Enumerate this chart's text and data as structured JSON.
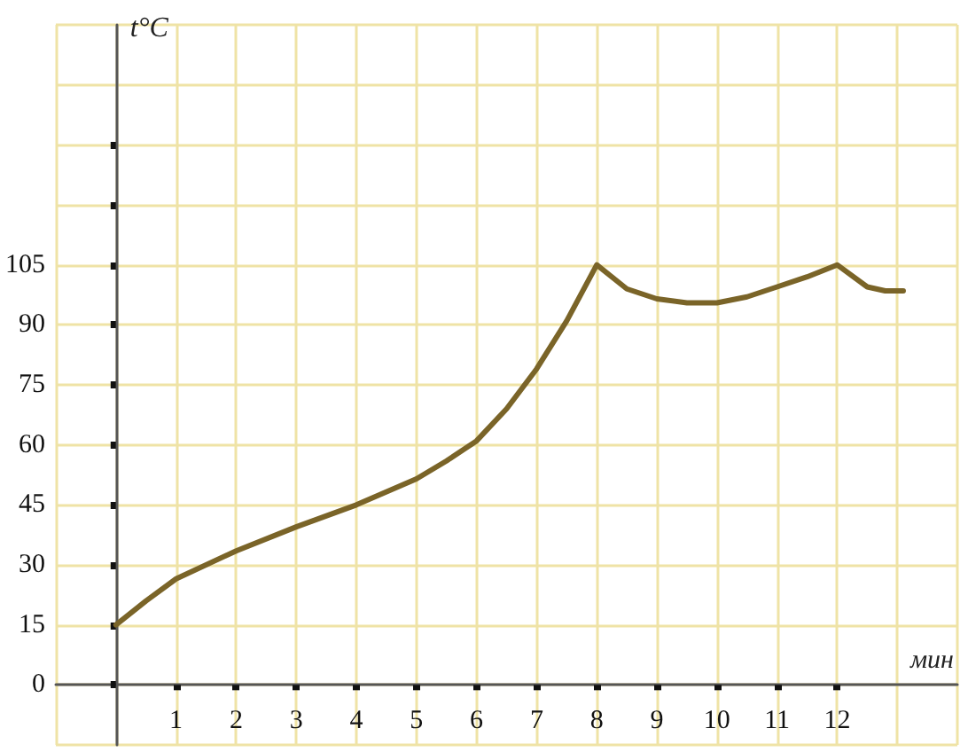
{
  "chart_data": {
    "type": "line",
    "xlabel": "мин",
    "ylabel": "t°C",
    "x": [
      0,
      0.5,
      1,
      2,
      3,
      4,
      5,
      5.5,
      6,
      6.5,
      7,
      7.5,
      8,
      8.5,
      9,
      9.5,
      10,
      10.5,
      11,
      11.5,
      12,
      12.5,
      12.8,
      13.1
    ],
    "series": [
      {
        "color": "#7a6428",
        "values": [
          15,
          21,
          26.5,
          33.5,
          39.5,
          45,
          51.5,
          56,
          61,
          69,
          79,
          91,
          105,
          99,
          96.5,
          95.5,
          95.5,
          97,
          99.5,
          102,
          105,
          99.5,
          98.5,
          98.5
        ]
      }
    ],
    "xlim": [
      -1,
      14
    ],
    "ylim": [
      -15,
      165
    ],
    "xticks": [
      1,
      2,
      3,
      4,
      5,
      6,
      7,
      8,
      9,
      10,
      11,
      12
    ],
    "yticks": [
      0,
      15,
      30,
      45,
      60,
      75,
      90,
      105,
      {
        "value": 120,
        "label": null
      },
      {
        "value": 135,
        "label": null
      }
    ],
    "grid": true,
    "marker": "none",
    "line_style": "solid"
  }
}
